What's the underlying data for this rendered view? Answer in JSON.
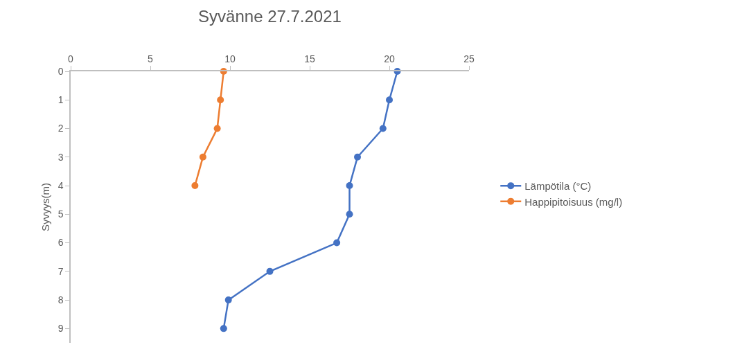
{
  "chart_data": {
    "type": "line",
    "title": "Syvänne 27.7.2021",
    "ylabel": "Syvyys(m)",
    "series": [
      {
        "name": "Lämpötila (°C)",
        "color": "#4472c4",
        "x": [
          20.5,
          20.0,
          19.6,
          18.0,
          17.5,
          17.5,
          16.7,
          12.5,
          9.9,
          9.6
        ],
        "values": [
          0,
          1,
          2,
          3,
          4,
          5,
          6,
          7,
          8,
          9
        ]
      },
      {
        "name": "Happipitoisuus (mg/l)",
        "color": "#ed7d31",
        "x": [
          9.6,
          9.4,
          9.2,
          8.3,
          7.8
        ],
        "values": [
          0,
          1,
          2,
          3,
          4
        ]
      }
    ],
    "xlim": [
      0,
      25
    ],
    "xticks": [
      0,
      5,
      10,
      15,
      20,
      25
    ],
    "ylim": [
      9.5,
      0
    ],
    "yticks": [
      0,
      1,
      2,
      3,
      4,
      5,
      6,
      7,
      8,
      9
    ],
    "legend": "right",
    "marker": "circle",
    "line_style": "solid"
  }
}
